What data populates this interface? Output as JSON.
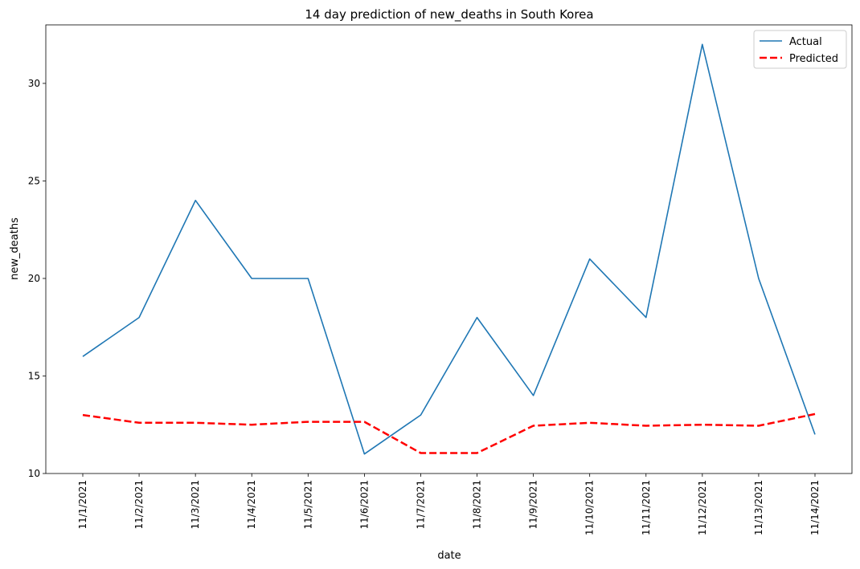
{
  "chart_data": {
    "type": "line",
    "title": "14 day prediction of new_deaths in South Korea",
    "xlabel": "date",
    "ylabel": "new_deaths",
    "categories": [
      "11/1/2021",
      "11/2/2021",
      "11/3/2021",
      "11/4/2021",
      "11/5/2021",
      "11/6/2021",
      "11/7/2021",
      "11/8/2021",
      "11/9/2021",
      "11/10/2021",
      "11/11/2021",
      "11/12/2021",
      "11/13/2021",
      "11/14/2021"
    ],
    "ylim": [
      10,
      33
    ],
    "yticks": [
      10,
      15,
      20,
      25,
      30
    ],
    "series": [
      {
        "name": "Actual",
        "color": "#1f77b4",
        "style": "solid",
        "values": [
          16,
          18,
          24,
          20,
          20,
          11,
          13,
          18,
          14,
          21,
          18,
          32,
          20,
          12
        ]
      },
      {
        "name": "Predicted",
        "color": "#ff0000",
        "style": "dashed",
        "values": [
          13.0,
          12.6,
          12.6,
          12.5,
          12.65,
          12.65,
          11.05,
          11.05,
          12.45,
          12.6,
          12.45,
          12.5,
          12.45,
          13.05
        ]
      }
    ],
    "legend": "top-right",
    "grid": false
  }
}
